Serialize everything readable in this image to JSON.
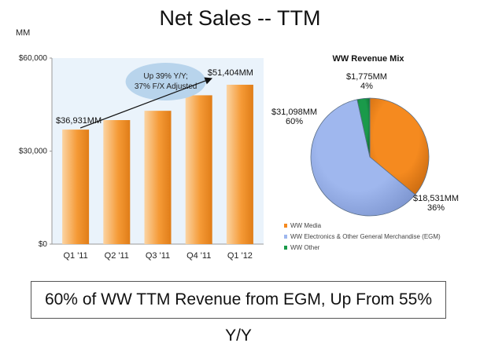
{
  "slide": {
    "title": "Net Sales -- TTM",
    "unit_label": "MM",
    "bottom_text": "60% of WW TTM Revenue from EGM, Up From 55% Y/Y"
  },
  "chart_data": [
    {
      "type": "bar",
      "categories": [
        "Q1 '11",
        "Q2 '11",
        "Q3 '11",
        "Q4 '11",
        "Q1 '12"
      ],
      "values": [
        36931,
        40000,
        43000,
        48000,
        51404
      ],
      "ylim": [
        0,
        60000
      ],
      "y_ticks": [
        0,
        30000,
        60000
      ],
      "y_tick_labels": [
        "$0",
        "$30,000",
        "$60,000"
      ],
      "bar_color": "#f59a36",
      "plot_background": "#eaf3fb",
      "data_labels": [
        {
          "index": 0,
          "text": "$36,931MM"
        },
        {
          "index": 4,
          "text": "$51,404MM"
        }
      ],
      "annotation": {
        "line1": "Up 39% Y/Y;",
        "line2": "37% F/X Adjusted"
      },
      "grid": false
    },
    {
      "type": "pie",
      "title": "WW Revenue Mix",
      "slices": [
        {
          "label": "WW Media",
          "value": 18531,
          "value_label": "$18,531MM",
          "percent_label": "36%",
          "color": "#f58a1f"
        },
        {
          "label": "WW Electronics & Other General Merchandise (EGM)",
          "value": 31098,
          "value_label": "$31,098MM",
          "percent_label": "60%",
          "color": "#9fb7ee"
        },
        {
          "label": "WW Other",
          "value": 1775,
          "value_label": "$1,775MM",
          "percent_label": "4%",
          "color": "#1a9a4a"
        }
      ],
      "legend_position": "bottom-left"
    }
  ]
}
